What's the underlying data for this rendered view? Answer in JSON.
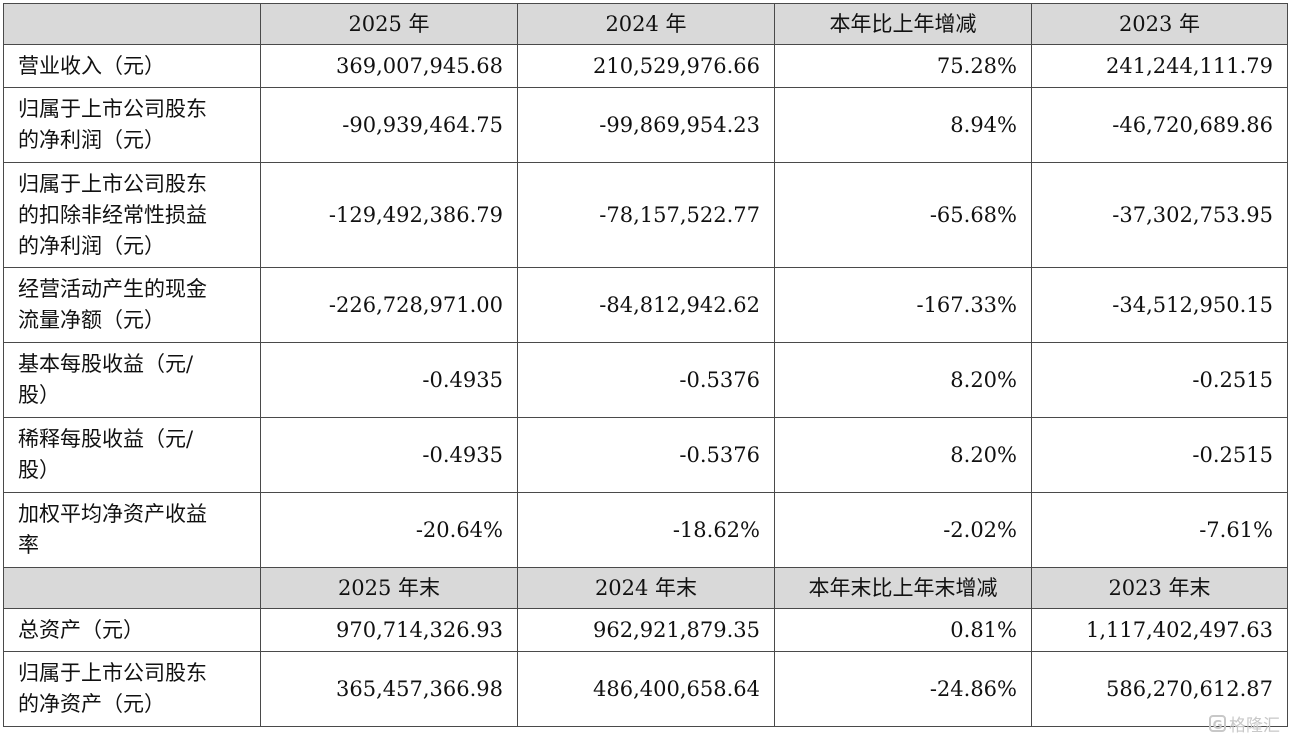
{
  "header": {
    "col1": "2025 年",
    "col2": "2024 年",
    "col3": "本年比上年增减",
    "col4": "2023 年"
  },
  "rows": [
    {
      "label_lines": [
        "营业收入（元）"
      ],
      "v2025": "369,007,945.68",
      "v2024": "210,529,976.66",
      "change": "75.28%",
      "v2023": "241,244,111.79"
    },
    {
      "label_lines": [
        "归属于上市公司股东",
        "的净利润（元）"
      ],
      "v2025": "-90,939,464.75",
      "v2024": "-99,869,954.23",
      "change": "8.94%",
      "v2023": "-46,720,689.86"
    },
    {
      "label_lines": [
        "归属于上市公司股东",
        "的扣除非经常性损益",
        "的净利润（元）"
      ],
      "v2025": "-129,492,386.79",
      "v2024": "-78,157,522.77",
      "change": "-65.68%",
      "v2023": "-37,302,753.95"
    },
    {
      "label_lines": [
        "经营活动产生的现金",
        "流量净额（元）"
      ],
      "v2025": "-226,728,971.00",
      "v2024": "-84,812,942.62",
      "change": "-167.33%",
      "v2023": "-34,512,950.15"
    },
    {
      "label_lines": [
        "基本每股收益（元/",
        "股）"
      ],
      "v2025": "-0.4935",
      "v2024": "-0.5376",
      "change": "8.20%",
      "v2023": "-0.2515"
    },
    {
      "label_lines": [
        "稀释每股收益（元/",
        "股）"
      ],
      "v2025": "-0.4935",
      "v2024": "-0.5376",
      "change": "8.20%",
      "v2023": "-0.2515"
    },
    {
      "label_lines": [
        "加权平均净资产收益",
        "率"
      ],
      "v2025": "-20.64%",
      "v2024": "-18.62%",
      "change": "-2.02%",
      "v2023": "-7.61%"
    }
  ],
  "header2": {
    "col1": "2025 年末",
    "col2": "2024 年末",
    "col3": "本年末比上年末增减",
    "col4": "2023 年末"
  },
  "rows2": [
    {
      "label_lines": [
        "总资产（元）"
      ],
      "v2025": "970,714,326.93",
      "v2024": "962,921,879.35",
      "change": "0.81%",
      "v2023": "1,117,402,497.63"
    },
    {
      "label_lines": [
        "归属于上市公司股东",
        "的净资产（元）"
      ],
      "v2025": "365,457,366.98",
      "v2024": "486,400,658.64",
      "change": "-24.86%",
      "v2023": "586,270,612.87"
    }
  ],
  "watermark": {
    "icon": "G",
    "text": "格隆汇"
  }
}
